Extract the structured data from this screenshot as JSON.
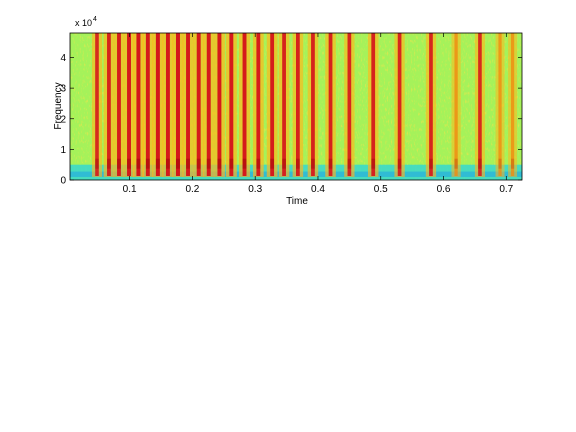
{
  "chart_data": {
    "type": "heatmap",
    "title": "",
    "xlabel": "Time",
    "ylabel": "Frequency",
    "xlim": [
      0.005,
      0.725
    ],
    "ylim": [
      0,
      48000
    ],
    "y_exponent_label": "x 10",
    "y_exponent": "4",
    "x_ticks": [
      {
        "value": 0.1,
        "label": "0.1"
      },
      {
        "value": 0.2,
        "label": "0.2"
      },
      {
        "value": 0.3,
        "label": "0.3"
      },
      {
        "value": 0.4,
        "label": "0.4"
      },
      {
        "value": 0.5,
        "label": "0.5"
      },
      {
        "value": 0.6,
        "label": "0.6"
      },
      {
        "value": 0.7,
        "label": "0.7"
      }
    ],
    "y_ticks": [
      {
        "value": 0,
        "label": "0"
      },
      {
        "value": 10000,
        "label": "1"
      },
      {
        "value": 20000,
        "label": "2"
      },
      {
        "value": 30000,
        "label": "3"
      },
      {
        "value": 40000,
        "label": "4"
      }
    ],
    "colormap": "jet",
    "background_level": "green-yellow",
    "low_band": {
      "top_hz": 5000,
      "level": "cyan"
    },
    "onsets": [
      {
        "time": 0.048,
        "intensity": 0.75
      },
      {
        "time": 0.067,
        "intensity": 0.85
      },
      {
        "time": 0.083,
        "intensity": 0.9
      },
      {
        "time": 0.099,
        "intensity": 0.95
      },
      {
        "time": 0.114,
        "intensity": 1.0
      },
      {
        "time": 0.129,
        "intensity": 0.95
      },
      {
        "time": 0.145,
        "intensity": 1.0
      },
      {
        "time": 0.161,
        "intensity": 0.95
      },
      {
        "time": 0.177,
        "intensity": 1.0
      },
      {
        "time": 0.193,
        "intensity": 0.95
      },
      {
        "time": 0.21,
        "intensity": 0.95
      },
      {
        "time": 0.226,
        "intensity": 0.95
      },
      {
        "time": 0.243,
        "intensity": 0.95
      },
      {
        "time": 0.262,
        "intensity": 0.95
      },
      {
        "time": 0.283,
        "intensity": 0.95
      },
      {
        "time": 0.305,
        "intensity": 0.9
      },
      {
        "time": 0.327,
        "intensity": 0.9
      },
      {
        "time": 0.346,
        "intensity": 0.85
      },
      {
        "time": 0.368,
        "intensity": 0.85
      },
      {
        "time": 0.392,
        "intensity": 0.85
      },
      {
        "time": 0.42,
        "intensity": 0.85
      },
      {
        "time": 0.45,
        "intensity": 0.8
      },
      {
        "time": 0.488,
        "intensity": 0.85
      },
      {
        "time": 0.53,
        "intensity": 0.8
      },
      {
        "time": 0.58,
        "intensity": 0.8
      },
      {
        "time": 0.62,
        "intensity": 0.55
      },
      {
        "time": 0.658,
        "intensity": 0.75
      },
      {
        "time": 0.69,
        "intensity": 0.5
      },
      {
        "time": 0.71,
        "intensity": 0.5
      }
    ],
    "grid": false,
    "legend": "none"
  }
}
